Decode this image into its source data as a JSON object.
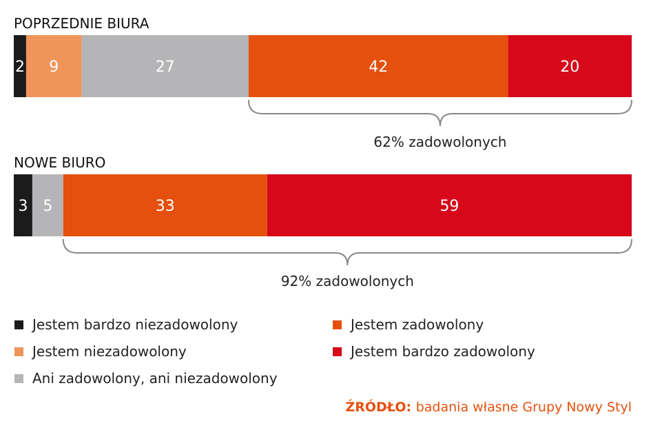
{
  "chart_data": {
    "type": "bar",
    "orientation": "horizontal-stacked-100",
    "groups": [
      {
        "title": "POPRZEDNIE BIURA",
        "values": [
          2,
          9,
          27,
          42,
          20
        ],
        "brace_label": "62% zadowolonych",
        "brace_from_category": 3
      },
      {
        "title": "NOWE BIURO",
        "values": [
          3,
          0,
          5,
          33,
          59
        ],
        "brace_label": "92% zadowolonych",
        "brace_from_category": 3
      }
    ],
    "categories": [
      "Jestem bardzo niezadowolony",
      "Jestem niezadowolony",
      "Ani zadowolony, ani niezadowolony",
      "Jestem zadowolony",
      "Jestem bardzo zadowolony"
    ],
    "colors": [
      "#1b1b1b",
      "#f0955a",
      "#b5b5b7",
      "#e5500e",
      "#d6081a"
    ],
    "xlim": [
      0,
      100
    ],
    "legend_position": "bottom",
    "source_label": "ŹRÓDŁO:",
    "source_text": "badania własne Grupy Nowy Styl"
  }
}
